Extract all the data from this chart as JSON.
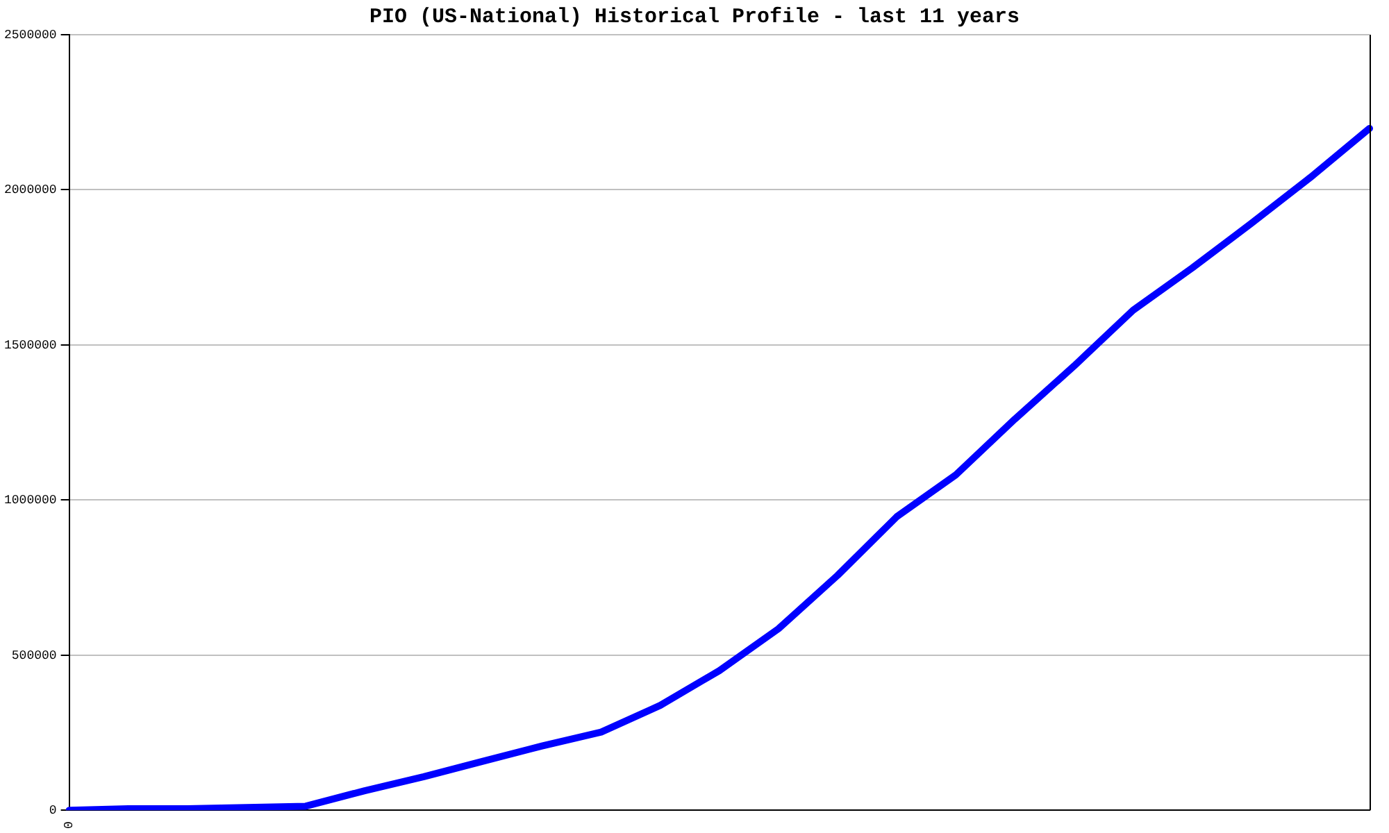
{
  "chart_data": {
    "type": "line",
    "title": "PIO (US-National) Historical Profile - last 11 years",
    "categories": [
      "0",
      null,
      null,
      null,
      null,
      null,
      null,
      null,
      null,
      null,
      null,
      null,
      null,
      null,
      null,
      null,
      null,
      null,
      null,
      null,
      null,
      null,
      null
    ],
    "series": [
      {
        "color": "#0000ff",
        "values": [
          0,
          5000,
          5000,
          9000,
          13000,
          63000,
          108000,
          158000,
          207000,
          252000,
          338000,
          450000,
          585000,
          757000,
          946000,
          1081000,
          1261000,
          1432000,
          1612000,
          1748000,
          1892000,
          2040000,
          2198000
        ]
      }
    ],
    "ylim": [
      0,
      2500000
    ],
    "yticks": [
      0,
      500000,
      1000000,
      1500000,
      2000000,
      2500000
    ],
    "grid": "y",
    "legend": false,
    "marker": "none",
    "line_style": "solid"
  }
}
